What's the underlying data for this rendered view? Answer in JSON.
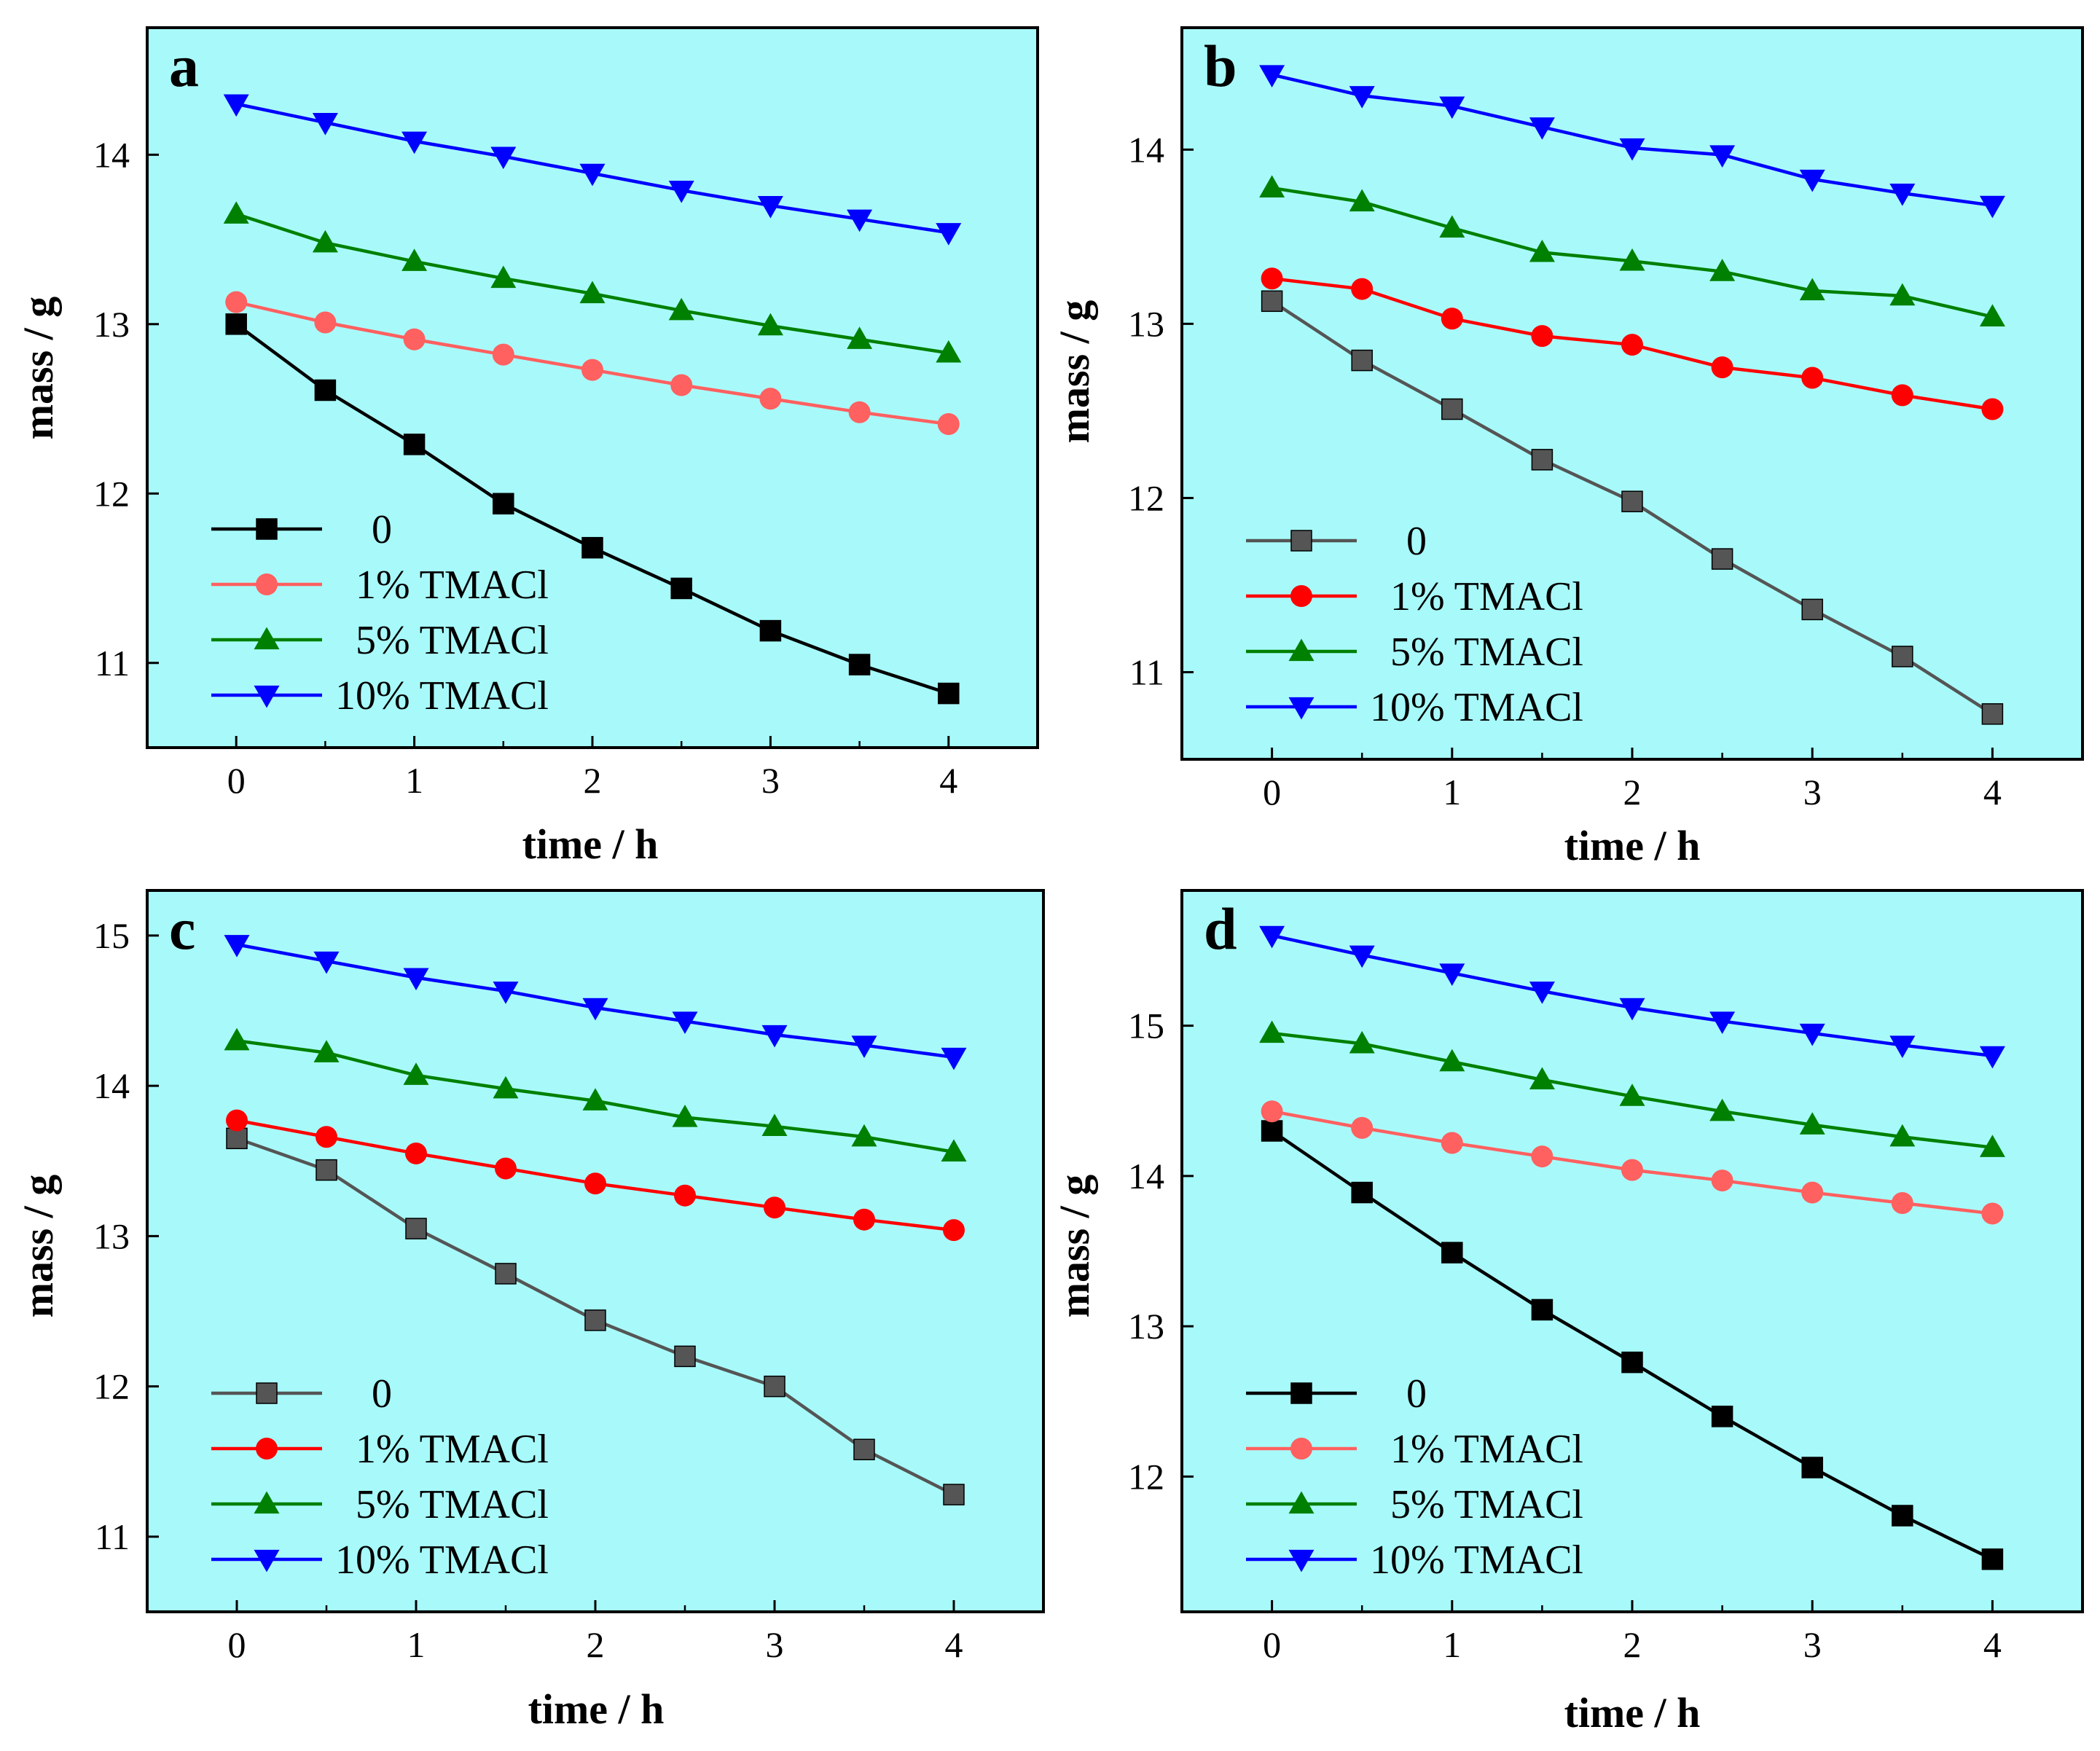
{
  "colors": {
    "plot_bg": "#a8fafa",
    "frame": "#000000",
    "series_0_a": "#000000",
    "series_0_gray": "#555555",
    "series_1_a": "#ff6060",
    "series_1_b": "#ff0000",
    "series_5": "#008000",
    "series_10": "#0000ff"
  },
  "chart_data": [
    {
      "panel": "a",
      "type": "line",
      "xlabel": "time / h",
      "ylabel": "mass / g",
      "x": [
        0,
        0.5,
        1,
        1.5,
        2,
        2.5,
        3,
        3.5,
        4
      ],
      "xlim": [
        -0.5,
        4.5
      ],
      "ylim": [
        10.5,
        14.75
      ],
      "xticks": [
        "0",
        "1",
        "2",
        "3",
        "4"
      ],
      "yticks": [
        "11",
        "12",
        "13",
        "14"
      ],
      "legend_position": "lower-left",
      "series": [
        {
          "name": "0",
          "marker": "square",
          "color": "#000000",
          "values": [
            13.0,
            12.61,
            12.29,
            11.94,
            11.68,
            11.44,
            11.19,
            10.99,
            10.82
          ]
        },
        {
          "name": "1% TMACl",
          "marker": "circle",
          "color": "#ff6060",
          "values": [
            13.13,
            13.01,
            12.91,
            12.82,
            12.73,
            12.64,
            12.56,
            12.48,
            12.41
          ]
        },
        {
          "name": "5% TMACl",
          "marker": "triangle-up",
          "color": "#008000",
          "values": [
            13.65,
            13.48,
            13.37,
            13.27,
            13.18,
            13.08,
            12.99,
            12.91,
            12.83
          ]
        },
        {
          "name": "10% TMACl",
          "marker": "triangle-down",
          "color": "#0000ff",
          "values": [
            14.3,
            14.19,
            14.08,
            13.99,
            13.89,
            13.79,
            13.7,
            13.62,
            13.54
          ]
        }
      ]
    },
    {
      "panel": "b",
      "type": "line",
      "xlabel": "time / h",
      "ylabel": "mass / g",
      "x": [
        0,
        0.5,
        1,
        1.5,
        2,
        2.5,
        3,
        3.5,
        4
      ],
      "xlim": [
        -0.5,
        4.5
      ],
      "ylim": [
        10.5,
        14.7
      ],
      "xticks": [
        "0",
        "1",
        "2",
        "3",
        "4"
      ],
      "yticks": [
        "11",
        "12",
        "13",
        "14"
      ],
      "legend_position": "lower-left",
      "series": [
        {
          "name": "0",
          "marker": "square",
          "color": "#555555",
          "values": [
            13.13,
            12.79,
            12.51,
            12.22,
            11.98,
            11.65,
            11.36,
            11.09,
            10.76
          ]
        },
        {
          "name": "1% TMACl",
          "marker": "circle",
          "color": "#ff0000",
          "values": [
            13.26,
            13.2,
            13.03,
            12.93,
            12.88,
            12.75,
            12.69,
            12.59,
            12.51
          ]
        },
        {
          "name": "5% TMACl",
          "marker": "triangle-up",
          "color": "#008000",
          "values": [
            13.78,
            13.7,
            13.55,
            13.41,
            13.36,
            13.3,
            13.19,
            13.16,
            13.04
          ]
        },
        {
          "name": "10% TMACl",
          "marker": "triangle-down",
          "color": "#0000ff",
          "values": [
            14.43,
            14.31,
            14.25,
            14.13,
            14.01,
            13.97,
            13.83,
            13.75,
            13.68
          ]
        }
      ]
    },
    {
      "panel": "c",
      "type": "line",
      "xlabel": "time / h",
      "ylabel": "mass / g",
      "x": [
        0,
        0.5,
        1,
        1.5,
        2,
        2.5,
        3,
        3.5,
        4
      ],
      "xlim": [
        -0.5,
        4.5
      ],
      "ylim": [
        10.5,
        15.3
      ],
      "xticks": [
        "0",
        "1",
        "2",
        "3",
        "4"
      ],
      "yticks": [
        "11",
        "12",
        "13",
        "14",
        "15"
      ],
      "legend_position": "lower-left",
      "series": [
        {
          "name": "0",
          "marker": "square",
          "color": "#555555",
          "values": [
            13.65,
            13.44,
            13.05,
            12.75,
            12.44,
            12.2,
            12.0,
            11.58,
            11.28
          ]
        },
        {
          "name": "1% TMACl",
          "marker": "circle",
          "color": "#ff0000",
          "values": [
            13.77,
            13.66,
            13.55,
            13.45,
            13.35,
            13.27,
            13.19,
            13.11,
            13.04
          ]
        },
        {
          "name": "5% TMACl",
          "marker": "triangle-up",
          "color": "#008000",
          "values": [
            14.3,
            14.22,
            14.07,
            13.98,
            13.9,
            13.79,
            13.73,
            13.66,
            13.56
          ]
        },
        {
          "name": "10% TMACl",
          "marker": "triangle-down",
          "color": "#0000ff",
          "values": [
            14.94,
            14.83,
            14.72,
            14.63,
            14.52,
            14.43,
            14.34,
            14.27,
            14.19
          ]
        }
      ]
    },
    {
      "panel": "d",
      "type": "line",
      "xlabel": "time / h",
      "ylabel": "mass / g",
      "x": [
        0,
        0.5,
        1,
        1.5,
        2,
        2.5,
        3,
        3.5,
        4
      ],
      "xlim": [
        -0.5,
        4.5
      ],
      "ylim": [
        11.1,
        15.9
      ],
      "xticks": [
        "0",
        "1",
        "2",
        "3",
        "4"
      ],
      "yticks": [
        "12",
        "13",
        "14",
        "15"
      ],
      "legend_position": "lower-left",
      "series": [
        {
          "name": "0",
          "marker": "square",
          "color": "#000000",
          "values": [
            14.3,
            13.89,
            13.49,
            13.11,
            12.76,
            12.4,
            12.06,
            11.74,
            11.45
          ]
        },
        {
          "name": "1% TMACl",
          "marker": "circle",
          "color": "#ff6060",
          "values": [
            14.43,
            14.32,
            14.22,
            14.13,
            14.04,
            13.97,
            13.89,
            13.82,
            13.75
          ]
        },
        {
          "name": "5% TMACl",
          "marker": "triangle-up",
          "color": "#008000",
          "values": [
            14.95,
            14.88,
            14.76,
            14.64,
            14.53,
            14.43,
            14.34,
            14.26,
            14.19
          ]
        },
        {
          "name": "10% TMACl",
          "marker": "triangle-down",
          "color": "#0000ff",
          "values": [
            15.6,
            15.47,
            15.35,
            15.23,
            15.12,
            15.03,
            14.95,
            14.87,
            14.8
          ]
        }
      ]
    }
  ]
}
